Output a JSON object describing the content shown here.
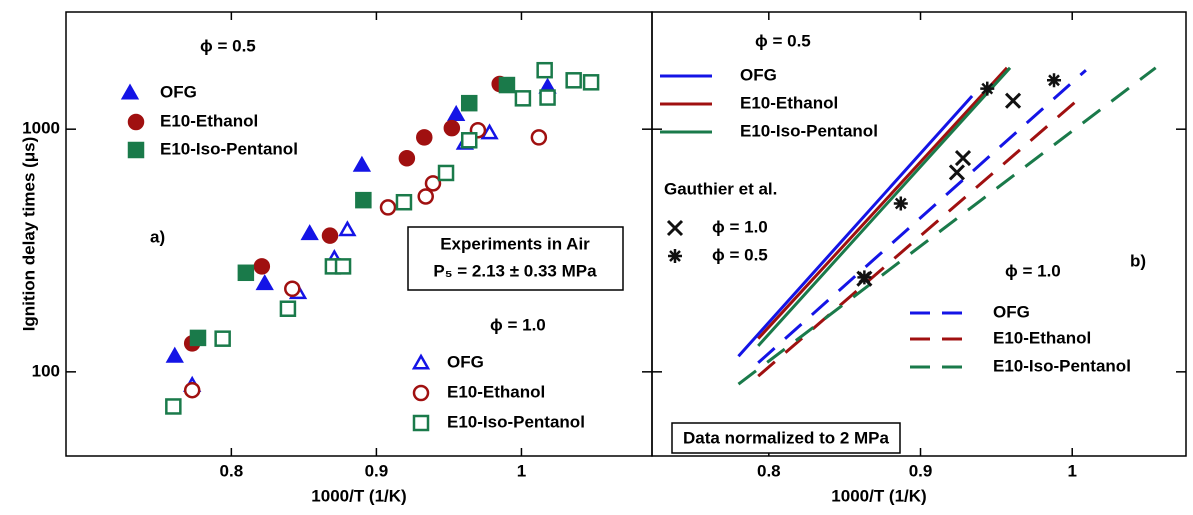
{
  "chart_data": [
    {
      "type": "scatter",
      "panel_label": "a)",
      "x_label": "1000/T (1/K)",
      "y_label": "Ignition delay times (μs)",
      "xlim": [
        0.686,
        1.09
      ],
      "ylim": [
        45,
        3040
      ],
      "xticks": [
        0.8,
        0.9,
        1
      ],
      "yticks": [
        100,
        1000
      ],
      "log_y": true,
      "series": [
        {
          "name": "OFG",
          "color": "#1414e6",
          "marker": "triangle",
          "filled": true,
          "x": [
            0.761,
            0.823,
            0.854,
            0.89,
            0.955,
            1.018
          ],
          "values": [
            116,
            231,
            371,
            710,
            1150,
            1490
          ]
        },
        {
          "name": "E10-Ethanol",
          "color": "#a01010",
          "marker": "circle",
          "filled": true,
          "x": [
            0.773,
            0.821,
            0.868,
            0.921,
            0.933,
            0.952,
            0.985
          ],
          "values": [
            131,
            272,
            364,
            759,
            925,
            1010,
            1535
          ]
        },
        {
          "name": "E10-Iso-Pentanol",
          "color": "#1a7a4a",
          "marker": "square",
          "filled": true,
          "x": [
            0.777,
            0.81,
            0.891,
            0.964,
            0.99
          ],
          "values": [
            138,
            256,
            510,
            1280,
            1520
          ]
        },
        {
          "name": "OFG",
          "color": "#1414e6",
          "marker": "triangle",
          "filled": false,
          "x": [
            0.773,
            0.846,
            0.871,
            0.88,
            0.961,
            0.978
          ],
          "values": [
            88,
            212,
            293,
            385,
            875,
            965
          ]
        },
        {
          "name": "E10-Ethanol",
          "color": "#a01010",
          "marker": "circle",
          "filled": false,
          "x": [
            0.773,
            0.842,
            0.908,
            0.934,
            0.939,
            0.97,
            1.012
          ],
          "values": [
            84,
            220,
            476,
            528,
            598,
            990,
            925
          ]
        },
        {
          "name": "E10-Iso-Pentanol",
          "color": "#1a7a4a",
          "marker": "square",
          "filled": false,
          "x": [
            0.76,
            0.794,
            0.839,
            0.87,
            0.877,
            0.919,
            0.948,
            0.964,
            1.001,
            1.016,
            1.018,
            1.036,
            1.048
          ],
          "values": [
            72,
            137,
            182,
            272,
            272,
            500,
            660,
            900,
            1340,
            1750,
            1350,
            1590,
            1560
          ]
        }
      ],
      "annotations": [
        "ϕ = 0.5",
        "ϕ = 1.0",
        "Experiments in Air",
        "P₅ = 2.13 ± 0.33 MPa"
      ]
    },
    {
      "type": "line",
      "panel_label": "b)",
      "x_label": "1000/T (1/K)",
      "xlim": [
        0.723,
        1.075
      ],
      "ylim": [
        45,
        3040
      ],
      "xticks": [
        0.8,
        0.9,
        1
      ],
      "yticks": [
        100,
        1000
      ],
      "log_y": true,
      "series": [
        {
          "name": "OFG",
          "color": "#1414e6",
          "dashed": false,
          "x": [
            0.78,
            0.934
          ],
          "values": [
            116,
            1370
          ]
        },
        {
          "name": "E10-Ethanol",
          "color": "#a01010",
          "dashed": false,
          "x": [
            0.793,
            0.957
          ],
          "values": [
            137,
            1790
          ]
        },
        {
          "name": "E10-Iso-Pentanol",
          "color": "#1a7a4a",
          "dashed": false,
          "x": [
            0.793,
            0.959
          ],
          "values": [
            128,
            1790
          ]
        },
        {
          "name": "OFG",
          "color": "#1414e6",
          "dashed": true,
          "x": [
            0.793,
            1.009
          ],
          "values": [
            109,
            1750
          ]
        },
        {
          "name": "E10-Ethanol",
          "color": "#a01010",
          "dashed": true,
          "x": [
            0.793,
            1.003
          ],
          "values": [
            96,
            1310
          ]
        },
        {
          "name": "E10-Iso-Pentanol",
          "color": "#1a7a4a",
          "dashed": true,
          "x": [
            0.78,
            1.055
          ],
          "values": [
            89,
            1790
          ]
        },
        {
          "name": "ϕ = 1.0",
          "color": "#111111",
          "marker": "cross",
          "x": [
            0.863,
            0.924,
            0.928,
            0.961
          ],
          "values": [
            242,
            663,
            760,
            1310
          ]
        },
        {
          "name": "ϕ = 0.5",
          "color": "#111111",
          "marker": "asterisk",
          "x": [
            0.863,
            0.887,
            0.944,
            0.988
          ],
          "values": [
            245,
            494,
            1470,
            1590
          ]
        }
      ],
      "annotations": [
        "ϕ = 0.5",
        "Gauthier et al.",
        "ϕ = 1.0",
        "Data normalized to 2 MPa"
      ]
    }
  ]
}
